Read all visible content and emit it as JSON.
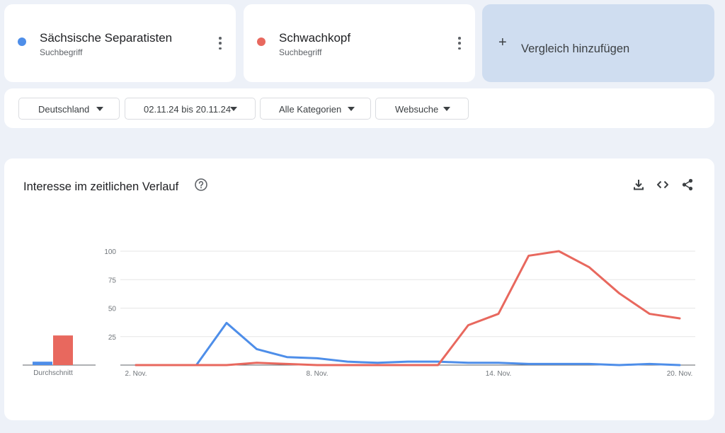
{
  "terms": [
    {
      "name": "Sächsische Separatisten",
      "type": "Suchbegriff",
      "color": "#4e8ee9"
    },
    {
      "name": "Schwachkopf",
      "type": "Suchbegriff",
      "color": "#e8685e"
    }
  ],
  "compare": {
    "plus": "+",
    "label": "Vergleich hinzufügen"
  },
  "filters": {
    "region": "Deutschland",
    "date_range": "02.11.24 bis 20.11.24",
    "category": "Alle Kategorien",
    "search_type": "Websuche"
  },
  "section": {
    "title": "Interesse im zeitlichen Verlauf"
  },
  "icons": {
    "help": "help-circle-icon",
    "download": "download-icon",
    "embed": "embed-code-icon",
    "share": "share-icon"
  },
  "colors": {
    "series1": "#4e8ee9",
    "series2": "#e8685e",
    "compare_bg": "#cfddf0"
  },
  "average": {
    "label": "Durchschnitt",
    "values": [
      3,
      26
    ]
  },
  "chart_data": {
    "type": "line",
    "x": [
      "2. Nov.",
      "3. Nov.",
      "4. Nov.",
      "5. Nov.",
      "6. Nov.",
      "7. Nov.",
      "8. Nov.",
      "9. Nov.",
      "10. Nov.",
      "11. Nov.",
      "12. Nov.",
      "13. Nov.",
      "14. Nov.",
      "15. Nov.",
      "16. Nov.",
      "17. Nov.",
      "18. Nov.",
      "19. Nov.",
      "20. Nov."
    ],
    "x_tick_labels": [
      "2. Nov.",
      "8. Nov.",
      "14. Nov.",
      "20. Nov."
    ],
    "series": [
      {
        "name": "Sächsische Separatisten",
        "color": "#4e8ee9",
        "values": [
          0,
          0,
          0,
          37,
          14,
          7,
          6,
          3,
          2,
          3,
          3,
          2,
          2,
          1,
          1,
          1,
          0,
          1,
          0
        ]
      },
      {
        "name": "Schwachkopf",
        "color": "#e8685e",
        "values": [
          0,
          0,
          0,
          0,
          2,
          1,
          0,
          0,
          0,
          0,
          0,
          35,
          45,
          96,
          100,
          86,
          63,
          45,
          41
        ]
      }
    ],
    "yticks": [
      25,
      50,
      75,
      100
    ],
    "ylim": [
      0,
      100
    ],
    "grid": true
  }
}
